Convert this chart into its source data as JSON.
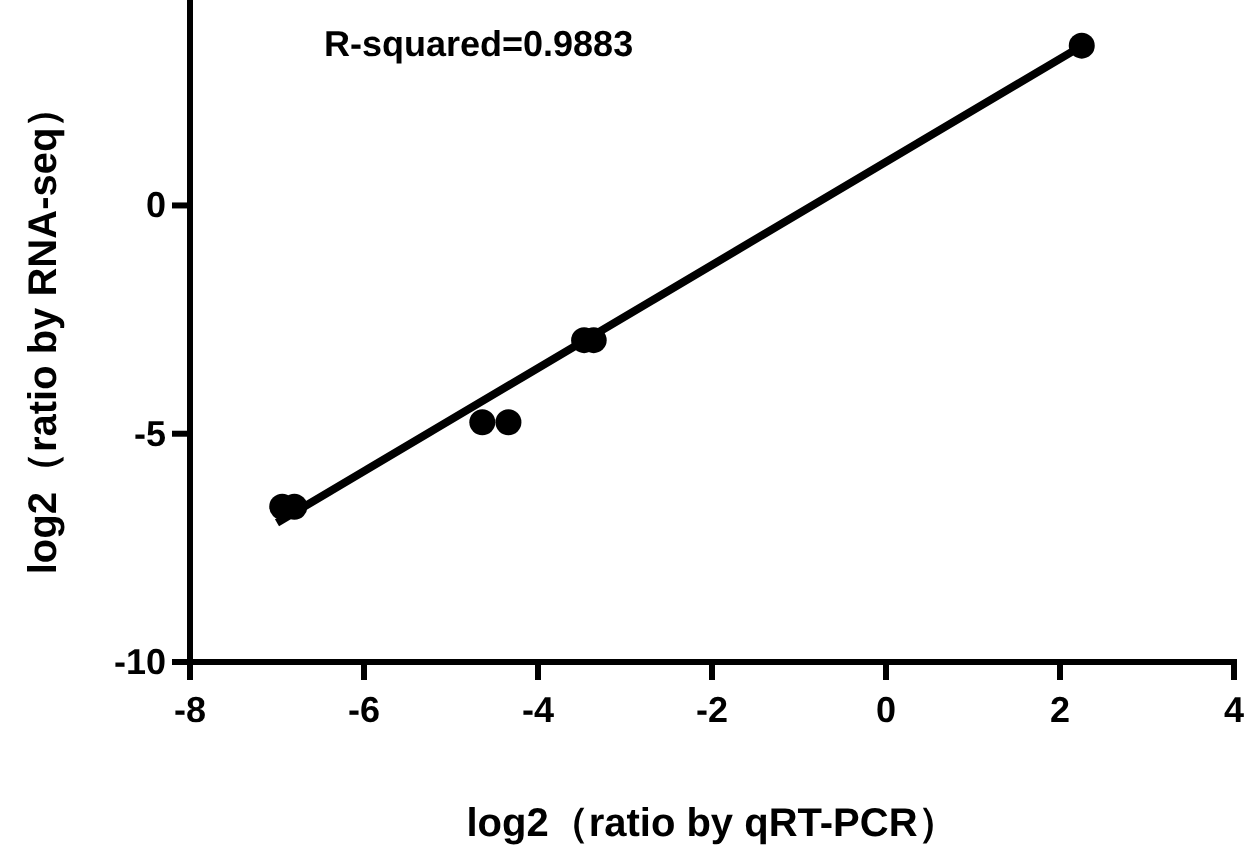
{
  "chart_data": {
    "type": "scatter",
    "xlabel": "log2（ratio by qRT-PCR）",
    "ylabel": "log2（ratio by RNA-seq）",
    "annotations": [
      "R-squared=0.9883"
    ],
    "xlim": [
      -8,
      4
    ],
    "ylim": [
      -10,
      4.5
    ],
    "xticks": [
      -8,
      -6,
      -4,
      -2,
      0,
      2,
      4
    ],
    "yticks": [
      -10,
      -5,
      0
    ],
    "series": [
      {
        "type": "scatter",
        "marker": "circle",
        "color": "#000000",
        "x": [
          -6.94,
          -6.8,
          -4.64,
          -4.34,
          -3.47,
          -3.36,
          2.25
        ],
        "values": [
          -6.6,
          -6.6,
          -4.75,
          -4.75,
          -2.95,
          -2.95,
          3.5
        ]
      },
      {
        "type": "line",
        "color": "#000000",
        "x": [
          -7.0,
          2.3
        ],
        "values": [
          -6.95,
          3.55
        ]
      }
    ]
  }
}
